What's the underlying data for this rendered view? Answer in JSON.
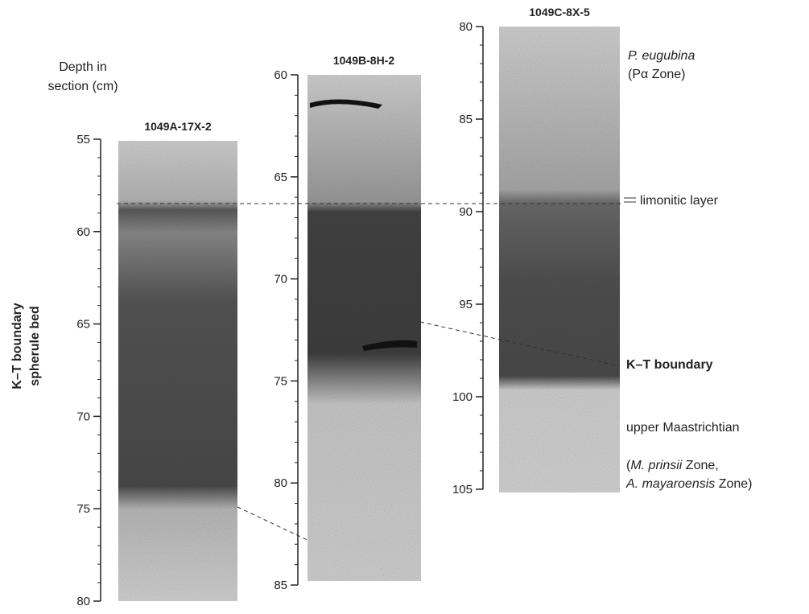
{
  "depth_label": [
    "Depth in",
    "section (cm)"
  ],
  "side_label": [
    "K–T boundary",
    "spherule bed"
  ],
  "cores": [
    {
      "name": "1049A-17X-2",
      "ticks": [
        55,
        60,
        65,
        70,
        75,
        80
      ]
    },
    {
      "name": "1049B-8H-2",
      "ticks": [
        60,
        65,
        70,
        75,
        80,
        85
      ]
    },
    {
      "name": "1049C-8X-5",
      "ticks": [
        80,
        85,
        90,
        95,
        100,
        105
      ]
    }
  ],
  "annotations": {
    "zone_species": "P. eugubina",
    "zone_name": "(Pα Zone)",
    "limonitic": "limonitic layer",
    "kt_boundary": "K–T boundary",
    "maastrichtian": "upper Maastrichtian",
    "prinsii": [
      "(",
      "M. prinsii",
      " Zone,"
    ],
    "mayaroensis": [
      "A. mayaroensis",
      " Zone)"
    ]
  }
}
